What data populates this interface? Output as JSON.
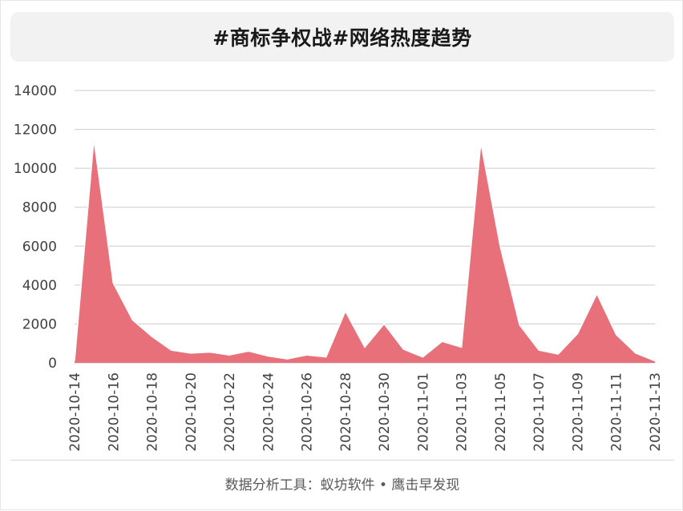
{
  "title": "#商标争权战#网络热度趋势",
  "footer": "数据分析工具：蚁坊软件 • 鹰击早发现",
  "colors": {
    "area_fill": "#e8707a",
    "area_stroke": "#ffffff",
    "grid": "#cccccc",
    "axis_text": "#404040"
  },
  "chart_data": {
    "type": "area",
    "ylim": [
      0,
      14000
    ],
    "yticks": [
      0,
      2000,
      4000,
      6000,
      8000,
      10000,
      12000,
      14000
    ],
    "grid": true,
    "x_tick_labels": [
      "2020-10-14",
      "2020-10-16",
      "2020-10-18",
      "2020-10-20",
      "2020-10-22",
      "2020-10-24",
      "2020-10-26",
      "2020-10-28",
      "2020-10-30",
      "2020-11-01",
      "2020-11-03",
      "2020-11-05",
      "2020-11-07",
      "2020-11-09",
      "2020-11-11",
      "2020-11-13"
    ],
    "x": [
      "2020-10-14",
      "2020-10-15",
      "2020-10-16",
      "2020-10-17",
      "2020-10-18",
      "2020-10-19",
      "2020-10-20",
      "2020-10-21",
      "2020-10-22",
      "2020-10-23",
      "2020-10-24",
      "2020-10-25",
      "2020-10-26",
      "2020-10-27",
      "2020-10-28",
      "2020-10-29",
      "2020-10-30",
      "2020-10-31",
      "2020-11-01",
      "2020-11-02",
      "2020-11-03",
      "2020-11-04",
      "2020-11-05",
      "2020-11-06",
      "2020-11-07",
      "2020-11-08",
      "2020-11-09",
      "2020-11-10",
      "2020-11-11",
      "2020-11-12",
      "2020-11-13"
    ],
    "values": [
      100,
      11500,
      4100,
      2200,
      1350,
      650,
      500,
      550,
      400,
      600,
      350,
      200,
      400,
      300,
      2650,
      800,
      2000,
      700,
      300,
      1100,
      800,
      11300,
      6000,
      1950,
      650,
      450,
      1500,
      3550,
      1450,
      500,
      100
    ]
  }
}
